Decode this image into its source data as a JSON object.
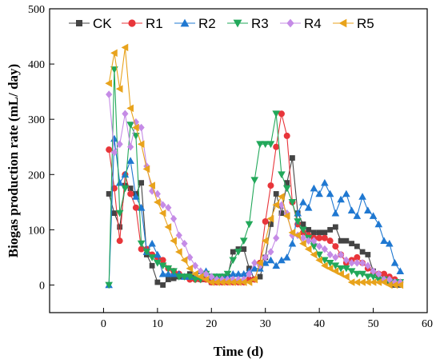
{
  "chart_data": {
    "type": "line",
    "title": "",
    "xlabel": "Time (d)",
    "ylabel": "Biogas production rate (mL/ day)",
    "xlim": [
      -10,
      60
    ],
    "ylim": [
      -50,
      500
    ],
    "xticks": [
      0,
      10,
      20,
      30,
      40,
      50,
      60
    ],
    "yticks": [
      0,
      100,
      200,
      300,
      400,
      500
    ],
    "grid": false,
    "legend_position": "top",
    "series": [
      {
        "name": "CK",
        "color": "#444444",
        "marker": "square",
        "x": [
          1,
          2,
          3,
          4,
          5,
          6,
          7,
          8,
          9,
          10,
          11,
          12,
          13,
          14,
          15,
          16,
          17,
          18,
          19,
          20,
          21,
          22,
          23,
          24,
          25,
          26,
          27,
          28,
          29,
          30,
          31,
          32,
          33,
          34,
          35,
          36,
          37,
          38,
          39,
          40,
          41,
          42,
          43,
          44,
          45,
          46,
          47,
          48,
          49,
          50,
          51,
          52,
          53,
          54,
          55
        ],
        "y": [
          165,
          130,
          105,
          180,
          175,
          165,
          185,
          55,
          35,
          5,
          0,
          10,
          12,
          15,
          15,
          20,
          15,
          10,
          10,
          5,
          5,
          5,
          15,
          60,
          65,
          65,
          30,
          10,
          15,
          50,
          110,
          165,
          130,
          185,
          230,
          130,
          110,
          100,
          95,
          95,
          95,
          100,
          105,
          80,
          80,
          75,
          70,
          60,
          55,
          25,
          15,
          10,
          5,
          0,
          0
        ]
      },
      {
        "name": "R1",
        "color": "#e8353a",
        "marker": "circle",
        "x": [
          1,
          2,
          3,
          4,
          5,
          6,
          7,
          8,
          9,
          10,
          11,
          12,
          13,
          14,
          15,
          16,
          17,
          18,
          19,
          20,
          21,
          22,
          23,
          24,
          25,
          26,
          27,
          28,
          29,
          30,
          31,
          32,
          33,
          34,
          35,
          36,
          37,
          38,
          39,
          40,
          41,
          42,
          43,
          44,
          45,
          46,
          47,
          48,
          49,
          50,
          51,
          52,
          53,
          54,
          55
        ],
        "y": [
          245,
          175,
          80,
          200,
          165,
          140,
          65,
          65,
          55,
          50,
          45,
          30,
          25,
          20,
          15,
          10,
          10,
          10,
          10,
          5,
          5,
          5,
          5,
          5,
          5,
          5,
          10,
          10,
          40,
          115,
          180,
          250,
          310,
          270,
          150,
          110,
          95,
          90,
          85,
          85,
          85,
          80,
          70,
          55,
          40,
          45,
          50,
          40,
          30,
          20,
          20,
          20,
          15,
          10,
          5
        ]
      },
      {
        "name": "R2",
        "color": "#1f78d1",
        "marker": "triangle-up",
        "x": [
          1,
          2,
          3,
          4,
          5,
          6,
          7,
          8,
          9,
          10,
          11,
          12,
          13,
          14,
          15,
          16,
          17,
          18,
          19,
          20,
          21,
          22,
          23,
          24,
          25,
          26,
          27,
          28,
          29,
          30,
          31,
          32,
          33,
          34,
          35,
          36,
          37,
          38,
          39,
          40,
          41,
          42,
          43,
          44,
          45,
          46,
          47,
          48,
          49,
          50,
          51,
          52,
          53,
          54,
          55
        ],
        "y": [
          0,
          265,
          185,
          200,
          225,
          160,
          140,
          60,
          75,
          55,
          20,
          20,
          20,
          20,
          15,
          15,
          15,
          25,
          25,
          15,
          15,
          15,
          15,
          20,
          20,
          20,
          25,
          30,
          30,
          40,
          45,
          35,
          45,
          50,
          75,
          130,
          150,
          140,
          175,
          165,
          185,
          165,
          130,
          155,
          165,
          135,
          125,
          160,
          135,
          125,
          110,
          80,
          75,
          40,
          25
        ]
      },
      {
        "name": "R3",
        "color": "#22a85a",
        "marker": "triangle-down",
        "x": [
          1,
          2,
          3,
          4,
          5,
          6,
          7,
          8,
          9,
          10,
          11,
          12,
          13,
          14,
          15,
          16,
          17,
          18,
          19,
          20,
          21,
          22,
          23,
          24,
          25,
          26,
          27,
          28,
          29,
          30,
          31,
          32,
          33,
          34,
          35,
          36,
          37,
          38,
          39,
          40,
          41,
          42,
          43,
          44,
          45,
          46,
          47,
          48,
          49,
          50,
          51,
          52,
          53,
          54,
          55
        ],
        "y": [
          0,
          390,
          130,
          175,
          290,
          270,
          75,
          60,
          50,
          40,
          35,
          30,
          25,
          15,
          15,
          15,
          10,
          10,
          20,
          15,
          15,
          15,
          20,
          45,
          60,
          80,
          110,
          190,
          255,
          255,
          255,
          310,
          200,
          175,
          150,
          115,
          100,
          85,
          70,
          55,
          45,
          40,
          35,
          30,
          30,
          25,
          20,
          20,
          15,
          15,
          10,
          10,
          5,
          5,
          5
        ]
      },
      {
        "name": "R4",
        "color": "#c58be6",
        "marker": "diamond",
        "x": [
          1,
          2,
          3,
          4,
          5,
          6,
          7,
          8,
          9,
          10,
          11,
          12,
          13,
          14,
          15,
          16,
          17,
          18,
          19,
          20,
          21,
          22,
          23,
          24,
          25,
          26,
          27,
          28,
          29,
          30,
          31,
          32,
          33,
          34,
          35,
          36,
          37,
          38,
          39,
          40,
          41,
          42,
          43,
          44,
          45,
          46,
          47,
          48,
          49,
          50,
          51,
          52,
          53,
          54,
          55
        ],
        "y": [
          345,
          240,
          255,
          310,
          250,
          295,
          285,
          215,
          170,
          165,
          145,
          140,
          120,
          90,
          75,
          50,
          35,
          25,
          20,
          15,
          10,
          10,
          10,
          10,
          10,
          10,
          20,
          40,
          35,
          50,
          60,
          85,
          145,
          130,
          90,
          90,
          85,
          80,
          80,
          70,
          65,
          55,
          50,
          55,
          45,
          40,
          40,
          40,
          35,
          25,
          20,
          10,
          10,
          5,
          5
        ]
      },
      {
        "name": "R5",
        "color": "#e8a31c",
        "marker": "triangle-left",
        "x": [
          1,
          2,
          3,
          4,
          5,
          6,
          7,
          8,
          9,
          10,
          11,
          12,
          13,
          14,
          15,
          16,
          17,
          18,
          19,
          20,
          21,
          22,
          23,
          24,
          25,
          26,
          27,
          28,
          29,
          30,
          31,
          32,
          33,
          34,
          35,
          36,
          37,
          38,
          39,
          40,
          41,
          42,
          43,
          44,
          45,
          46,
          47,
          48,
          49,
          50,
          51,
          52,
          53,
          54,
          55
        ],
        "y": [
          365,
          420,
          355,
          430,
          320,
          285,
          255,
          210,
          180,
          150,
          130,
          105,
          80,
          60,
          45,
          30,
          20,
          15,
          10,
          5,
          5,
          5,
          5,
          5,
          5,
          5,
          5,
          10,
          40,
          80,
          120,
          145,
          160,
          125,
          95,
          90,
          75,
          65,
          55,
          45,
          35,
          30,
          25,
          20,
          15,
          5,
          5,
          5,
          5,
          5,
          5,
          5,
          0,
          0,
          0
        ]
      }
    ]
  }
}
